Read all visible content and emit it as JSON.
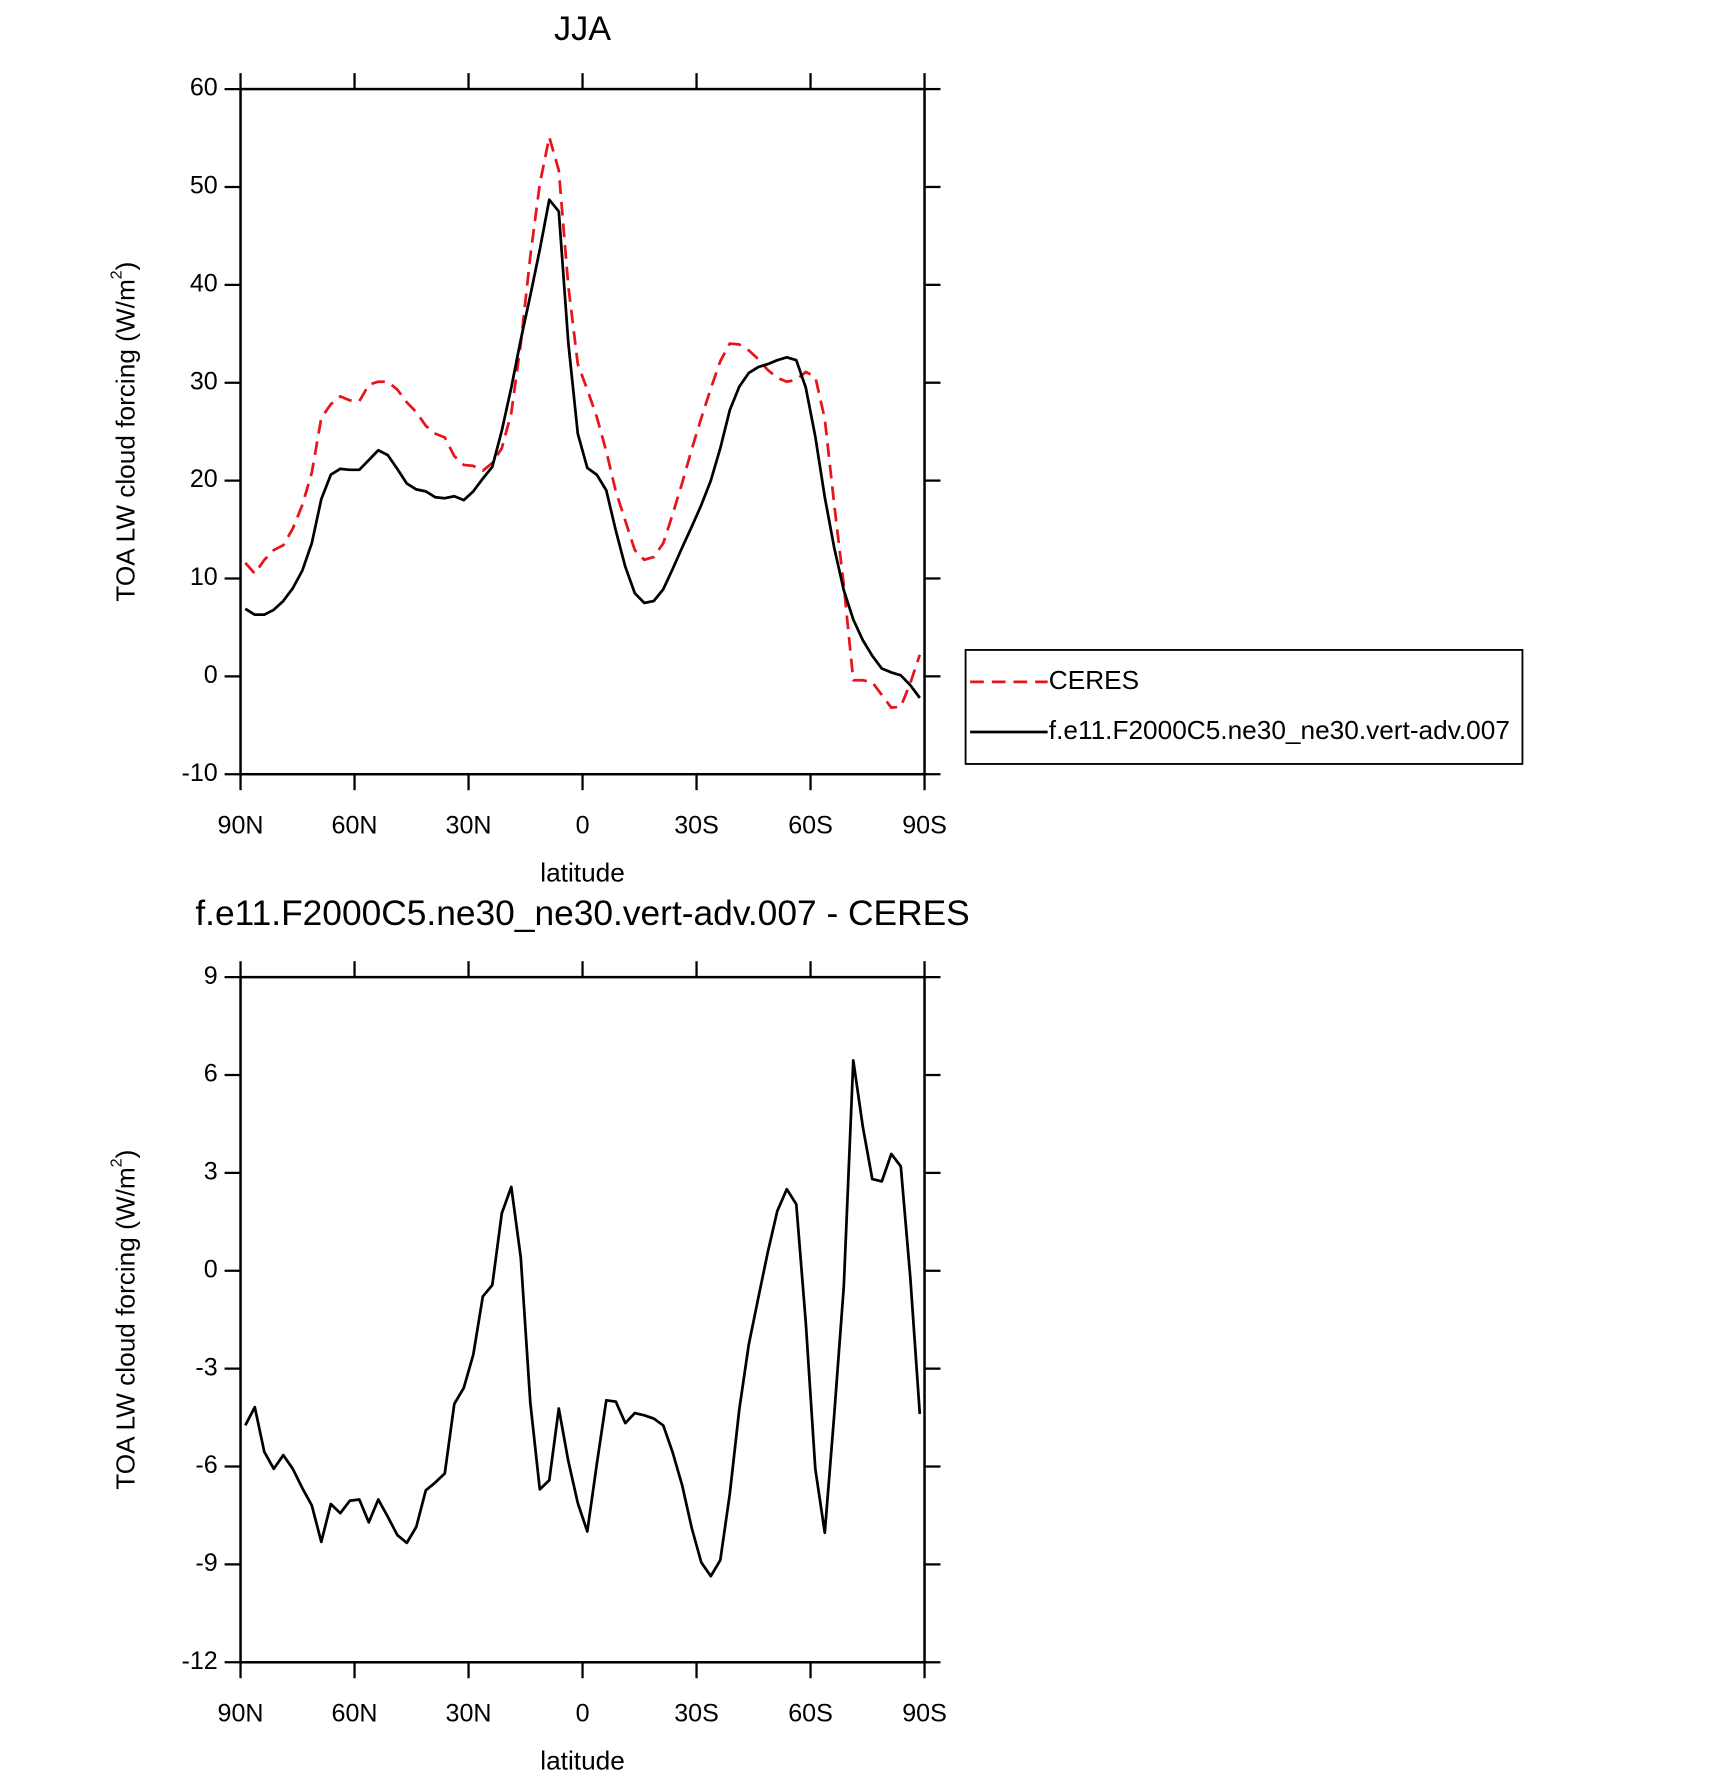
{
  "chart_data": [
    {
      "type": "line",
      "title": "JJA",
      "xlabel": "latitude",
      "ylabel": {
        "text": "TOA LW cloud forcing (W/m",
        "sup": "2",
        "end": ")"
      },
      "x": [
        88.75,
        86.25,
        83.75,
        81.25,
        78.75,
        76.25,
        73.75,
        71.25,
        68.75,
        66.25,
        63.75,
        61.25,
        58.75,
        56.25,
        53.75,
        51.25,
        48.75,
        46.25,
        43.75,
        41.25,
        38.75,
        36.25,
        33.75,
        31.25,
        28.75,
        26.25,
        23.75,
        21.25,
        18.75,
        16.25,
        13.75,
        11.25,
        8.75,
        6.25,
        3.75,
        1.25,
        -1.25,
        -3.75,
        -6.25,
        -8.75,
        -11.25,
        -13.75,
        -16.25,
        -18.75,
        -21.25,
        -23.75,
        -26.25,
        -28.75,
        -31.25,
        -33.75,
        -36.25,
        -38.75,
        -41.25,
        -43.75,
        -46.25,
        -48.75,
        -51.25,
        -53.75,
        -56.25,
        -58.75,
        -61.25,
        -63.75,
        -66.25,
        -68.75,
        -71.25,
        -73.75,
        -76.25,
        -78.75,
        -81.25,
        -83.75,
        -86.25,
        -88.75
      ],
      "xlim": [
        90,
        -90
      ],
      "xticks": [
        {
          "value": 90,
          "label": "90N"
        },
        {
          "value": 60,
          "label": "60N"
        },
        {
          "value": 30,
          "label": "30N"
        },
        0,
        {
          "value": -30,
          "label": "30S"
        },
        {
          "value": -60,
          "label": "60S"
        },
        {
          "value": -90,
          "label": "90S"
        }
      ],
      "ylim": [
        -10,
        60
      ],
      "yticks": [
        60,
        50,
        40,
        30,
        20,
        10,
        0,
        -10
      ],
      "legend": "right",
      "series": [
        {
          "name": "CERES",
          "color": "#e8141b",
          "style": "dashed",
          "values": [
            11.6,
            10.5,
            11.9,
            12.9,
            13.4,
            15.1,
            17.5,
            20.8,
            26.4,
            27.8,
            28.6,
            28.2,
            28.1,
            29.8,
            30.1,
            30.1,
            29.3,
            28.0,
            27.0,
            25.6,
            24.8,
            24.4,
            22.5,
            21.6,
            21.5,
            21.0,
            21.8,
            23.3,
            26.9,
            34.0,
            42.9,
            50.3,
            55.1,
            51.7,
            39.9,
            31.9,
            29.3,
            26.5,
            23.0,
            18.9,
            15.9,
            12.9,
            11.9,
            12.2,
            13.6,
            16.6,
            19.8,
            23.2,
            26.4,
            29.4,
            32.2,
            34.0,
            33.9,
            33.3,
            32.4,
            31.3,
            30.5,
            30.1,
            30.3,
            31.1,
            30.6,
            26.3,
            17.5,
            9.3,
            -0.4,
            -0.4,
            -0.6,
            -1.9,
            -3.2,
            -3.1,
            -0.7,
            2.2
          ]
        },
        {
          "name": "f.e11.F2000C5.ne30_ne30.vert-adv.007",
          "color": "#000000",
          "style": "solid",
          "values": [
            6.9,
            6.3,
            6.3,
            6.8,
            7.7,
            9.0,
            10.8,
            13.6,
            18.1,
            20.6,
            21.2,
            21.1,
            21.1,
            22.1,
            23.1,
            22.6,
            21.2,
            19.7,
            19.1,
            18.9,
            18.3,
            18.2,
            18.4,
            18.0,
            18.9,
            20.2,
            21.4,
            25.1,
            29.5,
            34.4,
            38.9,
            43.6,
            48.7,
            47.5,
            34.1,
            24.8,
            21.3,
            20.6,
            19.0,
            14.9,
            11.2,
            8.5,
            7.5,
            7.7,
            8.9,
            11.0,
            13.2,
            15.3,
            17.5,
            20.0,
            23.3,
            27.2,
            29.6,
            31.0,
            31.6,
            31.9,
            32.3,
            32.6,
            32.3,
            29.5,
            24.5,
            18.3,
            13.1,
            8.8,
            5.8,
            3.7,
            2.1,
            0.8,
            0.4,
            0.1,
            -0.9,
            -2.2
          ]
        }
      ]
    },
    {
      "type": "line",
      "title": "f.e11.F2000C5.ne30_ne30.vert-adv.007 - CERES",
      "xlabel": "latitude",
      "ylabel": {
        "text": "TOA LW cloud forcing (W/m",
        "sup": "2",
        "end": ")"
      },
      "x": [
        88.75,
        86.25,
        83.75,
        81.25,
        78.75,
        76.25,
        73.75,
        71.25,
        68.75,
        66.25,
        63.75,
        61.25,
        58.75,
        56.25,
        53.75,
        51.25,
        48.75,
        46.25,
        43.75,
        41.25,
        38.75,
        36.25,
        33.75,
        31.25,
        28.75,
        26.25,
        23.75,
        21.25,
        18.75,
        16.25,
        13.75,
        11.25,
        8.75,
        6.25,
        3.75,
        1.25,
        -1.25,
        -3.75,
        -6.25,
        -8.75,
        -11.25,
        -13.75,
        -16.25,
        -18.75,
        -21.25,
        -23.75,
        -26.25,
        -28.75,
        -31.25,
        -33.75,
        -36.25,
        -38.75,
        -41.25,
        -43.75,
        -46.25,
        -48.75,
        -51.25,
        -53.75,
        -56.25,
        -58.75,
        -61.25,
        -63.75,
        -66.25,
        -68.75,
        -71.25,
        -73.75,
        -76.25,
        -78.75,
        -81.25,
        -83.75,
        -86.25,
        -88.75
      ],
      "xlim": [
        90,
        -90
      ],
      "xticks": [
        {
          "value": 90,
          "label": "90N"
        },
        {
          "value": 60,
          "label": "60N"
        },
        {
          "value": 30,
          "label": "30N"
        },
        0,
        {
          "value": -30,
          "label": "30S"
        },
        {
          "value": -60,
          "label": "60S"
        },
        {
          "value": -90,
          "label": "90S"
        }
      ],
      "ylim": [
        -12,
        9
      ],
      "yticks": [
        9,
        6,
        3,
        0,
        -3,
        -6,
        -9,
        -12
      ],
      "color": "#000000",
      "values": [
        -4.74,
        -4.18,
        -5.55,
        -6.07,
        -5.65,
        -6.07,
        -6.66,
        -7.19,
        -8.31,
        -7.15,
        -7.43,
        -7.05,
        -7.01,
        -7.71,
        -7.01,
        -7.54,
        -8.1,
        -8.34,
        -7.85,
        -6.73,
        -6.49,
        -6.21,
        -4.08,
        -3.59,
        -2.57,
        -0.79,
        -0.44,
        1.76,
        2.57,
        0.4,
        -4.04,
        -6.7,
        -6.42,
        -4.22,
        -5.83,
        -7.12,
        -7.99,
        -5.93,
        -3.97,
        -4.01,
        -4.67,
        -4.36,
        -4.43,
        -4.53,
        -4.74,
        -5.58,
        -6.59,
        -7.89,
        -8.94,
        -9.36,
        -8.87,
        -6.84,
        -4.25,
        -2.26,
        -0.83,
        0.57,
        1.83,
        2.5,
        2.04,
        -1.59,
        -6.07,
        -8.03,
        -4.39,
        -0.48,
        6.45,
        4.42,
        2.81,
        2.74,
        3.58,
        3.2,
        -0.2,
        -4.39
      ]
    }
  ]
}
